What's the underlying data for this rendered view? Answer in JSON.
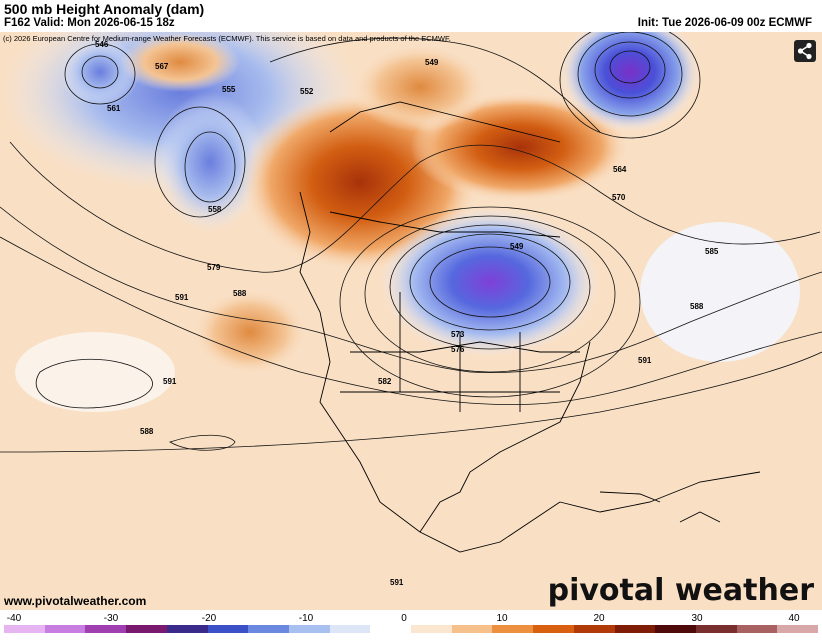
{
  "header": {
    "title": "500 mb Height Anomaly (dam)",
    "valid": "F162 Valid: Mon 2026-06-15 18z",
    "init": "Init: Tue 2026-06-09 00z ECMWF"
  },
  "map": {
    "copyright": "(c) 2026 European Centre for Medium-range Weather Forecasts (ECMWF). This service is based on data and products of the ECMWF.",
    "website": "www.pivotalweather.com",
    "brand": "pivotal weather",
    "contour_labels": [
      "546",
      "549",
      "552",
      "555",
      "558",
      "561",
      "564",
      "567",
      "570",
      "573",
      "576",
      "579",
      "582",
      "585",
      "588",
      "591"
    ],
    "share_icon": "share-icon"
  },
  "colorbar": {
    "ticks": [
      "-40",
      "-30",
      "-20",
      "-10",
      "0",
      "10",
      "20",
      "30",
      "40"
    ],
    "colors": [
      "#e6b4f0",
      "#c87de0",
      "#a040b0",
      "#7a1a6e",
      "#3a2a8a",
      "#3c50c8",
      "#6a88e0",
      "#a8c0f0",
      "#dde6f6",
      "#ffffff",
      "#fbe6d0",
      "#f5c08a",
      "#ec9040",
      "#d86010",
      "#b03a08",
      "#7e1c06",
      "#4e0a0a",
      "#7a2f2f",
      "#a86060",
      "#d8a8a8"
    ]
  }
}
